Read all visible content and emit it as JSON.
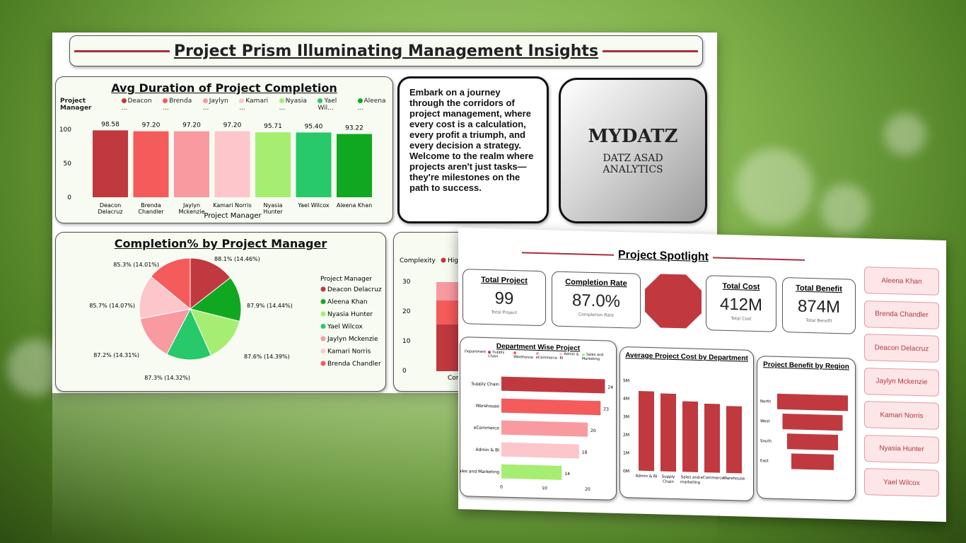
{
  "main": {
    "title": "Project Prism Illuminating Management Insights",
    "quote": "Embark on a journey through the corridors of project management, where every cost is a calculation, every profit a triumph, and every decision a strategy. Welcome to the realm where projects aren't just tasks—they're milestones on the path to success.",
    "logo": {
      "name": "MYDATZ",
      "sub1": "DATZ ASAD",
      "sub2": "ANALYTICS"
    }
  },
  "colors": {
    "dark_red": "#c0393f",
    "red": "#f45b5b",
    "pink": "#f89aa0",
    "light_pink": "#fcc6cb",
    "light_green": "#a6ee72",
    "green": "#27c96a",
    "dark_green": "#10a820"
  },
  "chart_data": [
    {
      "type": "bar",
      "title": "Avg Duration of Project Completion",
      "legend_title": "Project Manager",
      "legend": [
        "Deacon ...",
        "Brenda ...",
        "Jaylyn ...",
        "Kamari ...",
        "Nyasia ...",
        "Yael Wil...",
        "Aleena ..."
      ],
      "categories": [
        "Deacon Delacruz",
        "Brenda Chandler",
        "Jaylyn Mckenzie",
        "Kamari Norris",
        "Nyasia Hunter",
        "Yael Wilcox",
        "Aleena Khan"
      ],
      "values": [
        98.58,
        97.2,
        97.2,
        97.2,
        95.71,
        95.4,
        93.22
      ],
      "labels": [
        "98.58",
        "97.20",
        "97.20",
        "97.20",
        "95.71",
        "95.40",
        "93.22"
      ],
      "yticks": [
        "100",
        "50",
        "0"
      ],
      "ylim": [
        0,
        100
      ],
      "xlabel": "Project Manager"
    },
    {
      "type": "pie",
      "title": "Completion% by Project Manager",
      "legend_title": "Project Manager",
      "legend": [
        "Deacon Delacruz",
        "Aleena Khan",
        "Nyasia Hunter",
        "Yael Wilcox",
        "Jaylyn Mckenzie",
        "Kamari Norris",
        "Brenda Chandler"
      ],
      "values": [
        88.1,
        87.9,
        87.6,
        87.3,
        87.2,
        85.7,
        85.3
      ],
      "labels": [
        "88.1% (14.46%)",
        "87.9% (14.44%)",
        "87.6% (14.39%)",
        "87.3% (14.32%)",
        "87.2% (14.31%)",
        "85.7% (14.07%)",
        "85.3% (14.01%)"
      ]
    },
    {
      "type": "bar",
      "title": "Department Wise Project",
      "legend_title": "Department",
      "legend": [
        "Supply Chain",
        "Warehouse",
        "eCommerce",
        "Admin & BI",
        "Sales and Marketing"
      ],
      "categories": [
        "Supply Chain",
        "Warehouse",
        "eCommerce",
        "Admin & BI",
        "Sales and Marketing"
      ],
      "values": [
        24,
        23,
        20,
        18,
        14
      ],
      "xticks": [
        "0",
        "10",
        "20"
      ]
    },
    {
      "type": "bar",
      "title": "Average Project Cost by Department",
      "categories": [
        "Admin & BI",
        "Supply Chain",
        "Sales and marketing",
        "eCommerce",
        "Warehouse"
      ],
      "values": [
        4.4,
        4.3,
        3.9,
        3.8,
        3.7
      ],
      "yticks": [
        "5M",
        "4M",
        "3M",
        "2M",
        "1M",
        "0M"
      ],
      "ylim": [
        0,
        5
      ]
    },
    {
      "type": "bar",
      "title": "Project Benefit by Region",
      "categories": [
        "North",
        "West",
        "South",
        "East"
      ],
      "values": [
        1.0,
        0.85,
        0.72,
        0.6
      ]
    }
  ],
  "side_chart": {
    "label": "Complexity",
    "legend": "High",
    "yticks": [
      "30",
      "20",
      "10",
      "0"
    ],
    "cat": "Com"
  },
  "spotlight": {
    "title": "Project Spotlight",
    "kpis": [
      {
        "title": "Total Project",
        "value": "99",
        "sub": "Total Project"
      },
      {
        "title": "Completion Rate",
        "value": "87.0%",
        "sub": "Completion Rate"
      },
      {
        "title": "Total Cost",
        "value": "412M",
        "sub": "Total Cost"
      },
      {
        "title": "Total Benefit",
        "value": "874M",
        "sub": "Total Benefit"
      }
    ],
    "slicers": [
      "Aleena Khan",
      "Brenda Chandler",
      "Deacon Delacruz",
      "Jaylyn Mckenzie",
      "Kamari Norris",
      "Nyasia Hunter",
      "Yael Wilcox"
    ]
  }
}
